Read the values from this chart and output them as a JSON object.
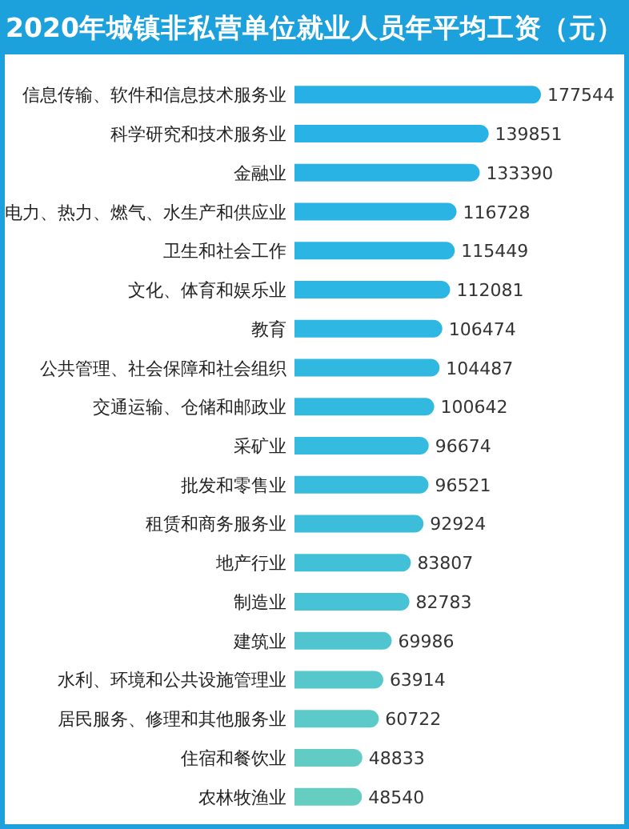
{
  "chart_data": {
    "type": "bar",
    "orientation": "horizontal",
    "title": "2020年城镇非私营单位就业人员年平均工资（元）",
    "categories": [
      "信息传输、软件和信息技术服务业",
      "科学研究和技术服务业",
      "金融业",
      "电力、热力、燃气、水生产和供应业",
      "卫生和社会工作",
      "文化、体育和娱乐业",
      "教育",
      "公共管理、社会保障和社会组织",
      "交通运输、仓储和邮政业",
      "采矿业",
      "批发和零售业",
      "租赁和商务服务业",
      "地产行业",
      "制造业",
      "建筑业",
      "水利、环境和公共设施管理业",
      "居民服务、修理和其他服务业",
      "住宿和餐饮业",
      "农林牧渔业"
    ],
    "values": [
      177544,
      139851,
      133390,
      116728,
      115449,
      112081,
      106474,
      104487,
      100642,
      96674,
      96521,
      92924,
      83807,
      82783,
      69986,
      63914,
      60722,
      48833,
      48540
    ],
    "colors": [
      "#27b0e6",
      "#28b2e5",
      "#29b3e5",
      "#2ab4e4",
      "#2bb5e3",
      "#2cb6e3",
      "#2eb7e2",
      "#30b8e1",
      "#32b9e0",
      "#35bbdf",
      "#38bcdd",
      "#3cbedb",
      "#42c0d8",
      "#48c2d5",
      "#50c5d0",
      "#56c8cc",
      "#5ccac8",
      "#62ccc4",
      "#66cec1"
    ],
    "data_labels": true
  }
}
